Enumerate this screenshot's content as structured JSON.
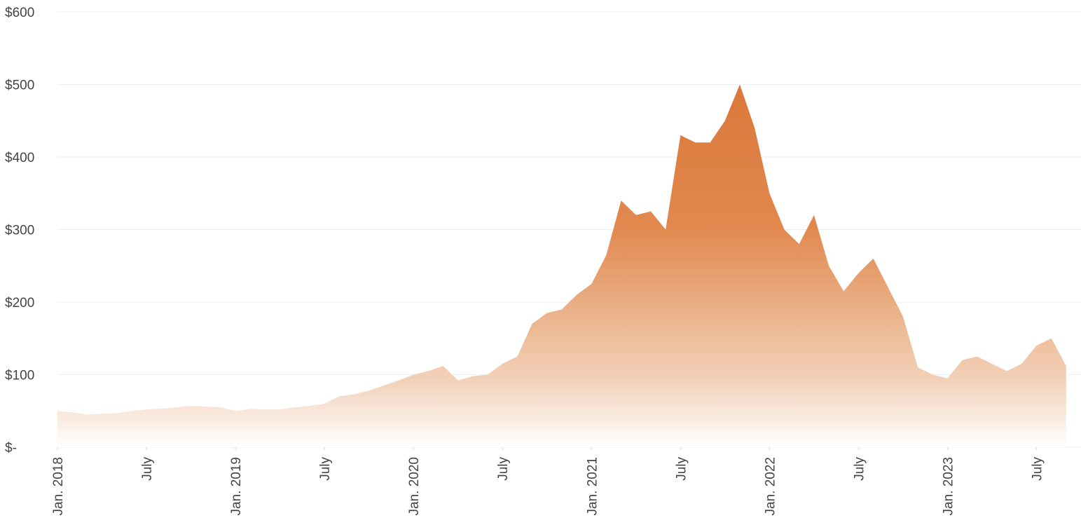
{
  "chart_data": {
    "type": "area",
    "x": [
      "2018-01",
      "2018-02",
      "2018-03",
      "2018-04",
      "2018-05",
      "2018-06",
      "2018-07",
      "2018-08",
      "2018-09",
      "2018-10",
      "2018-11",
      "2018-12",
      "2019-01",
      "2019-02",
      "2019-03",
      "2019-04",
      "2019-05",
      "2019-06",
      "2019-07",
      "2019-08",
      "2019-09",
      "2019-10",
      "2019-11",
      "2019-12",
      "2020-01",
      "2020-02",
      "2020-03",
      "2020-04",
      "2020-05",
      "2020-06",
      "2020-07",
      "2020-08",
      "2020-09",
      "2020-10",
      "2020-11",
      "2020-12",
      "2021-01",
      "2021-02",
      "2021-03",
      "2021-04",
      "2021-05",
      "2021-06",
      "2021-07",
      "2021-08",
      "2021-09",
      "2021-10",
      "2021-11",
      "2021-12",
      "2022-01",
      "2022-02",
      "2022-03",
      "2022-04",
      "2022-05",
      "2022-06",
      "2022-07",
      "2022-08",
      "2022-09",
      "2022-10",
      "2022-11",
      "2022-12",
      "2023-01",
      "2023-02",
      "2023-03",
      "2023-04",
      "2023-05",
      "2023-06",
      "2023-07",
      "2023-08",
      "2023-09"
    ],
    "values": [
      50,
      48,
      45,
      46,
      47,
      50,
      52,
      53,
      55,
      57,
      56,
      55,
      50,
      53,
      52,
      52,
      55,
      57,
      60,
      70,
      73,
      78,
      85,
      92,
      100,
      105,
      112,
      92,
      98,
      100,
      115,
      125,
      170,
      185,
      190,
      210,
      225,
      265,
      340,
      320,
      325,
      300,
      430,
      420,
      420,
      450,
      500,
      440,
      350,
      300,
      280,
      320,
      250,
      215,
      240,
      260,
      220,
      180,
      110,
      100,
      95,
      120,
      125,
      115,
      105,
      115,
      140,
      150,
      112
    ],
    "color": "#dc7636",
    "xlim": [
      "2018-01",
      "2023-10"
    ],
    "xticks": [
      {
        "value": "2018-01",
        "label": "Jan. 2018"
      },
      {
        "value": "2018-07",
        "label": "July"
      },
      {
        "value": "2019-01",
        "label": "Jan. 2019"
      },
      {
        "value": "2019-07",
        "label": "July"
      },
      {
        "value": "2020-01",
        "label": "Jan. 2020"
      },
      {
        "value": "2020-07",
        "label": "July"
      },
      {
        "value": "2021-01",
        "label": "Jan. 2021"
      },
      {
        "value": "2021-07",
        "label": "July"
      },
      {
        "value": "2022-01",
        "label": "Jan. 2022"
      },
      {
        "value": "2022-07",
        "label": "July"
      },
      {
        "value": "2023-01",
        "label": "Jan. 2023"
      },
      {
        "value": "2023-07",
        "label": "July"
      }
    ],
    "ylim": [
      0,
      600
    ],
    "yticks": [
      {
        "value": 0,
        "label": "$-"
      },
      {
        "value": 100,
        "label": "$100"
      },
      {
        "value": 200,
        "label": "$200"
      },
      {
        "value": 300,
        "label": "$300"
      },
      {
        "value": 400,
        "label": "$400"
      },
      {
        "value": 500,
        "label": "$500"
      },
      {
        "value": 600,
        "label": "$600"
      }
    ],
    "grid": true
  }
}
